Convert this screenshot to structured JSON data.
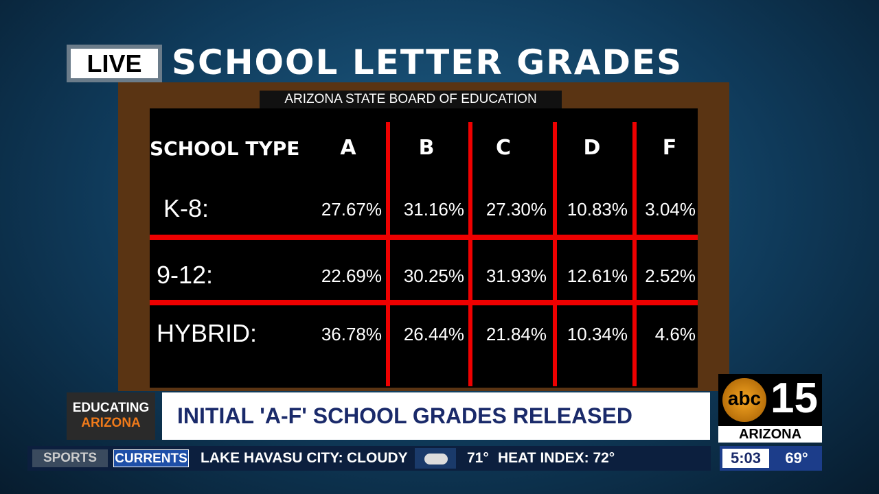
{
  "live": "LIVE",
  "title": "SCHOOL LETTER GRADES",
  "source": "ARIZONA STATE BOARD OF EDUCATION",
  "table": {
    "header": [
      "SCHOOL TYPE",
      "A",
      "B",
      "C",
      "D",
      "F"
    ],
    "rows": [
      [
        "K-8:",
        "27.67%",
        "31.16%",
        "27.30%",
        "10.83%",
        "3.04%"
      ],
      [
        "9-12:",
        "22.69%",
        "30.25%",
        "31.93%",
        "12.61%",
        "2.52%"
      ],
      [
        "HYBRID:",
        "36.78%",
        "26.44%",
        "21.84%",
        "10.34%",
        "4.6%"
      ]
    ]
  },
  "section": [
    "EDUCATING",
    "ARIZONA"
  ],
  "headline": "INITIAL 'A-F' SCHOOL GRADES RELEASED",
  "logo": {
    "network": "abc",
    "channel": "15",
    "region": "ARIZONA"
  },
  "ticker": {
    "tabs": [
      "SPORTS",
      "CURRENTS"
    ],
    "city": "LAKE HAVASU CITY:",
    "condition": "CLOUDY",
    "temp": "71°",
    "heat_index": "HEAT INDEX: 72°"
  },
  "clock": {
    "time": "5:03",
    "temp": "69°"
  }
}
